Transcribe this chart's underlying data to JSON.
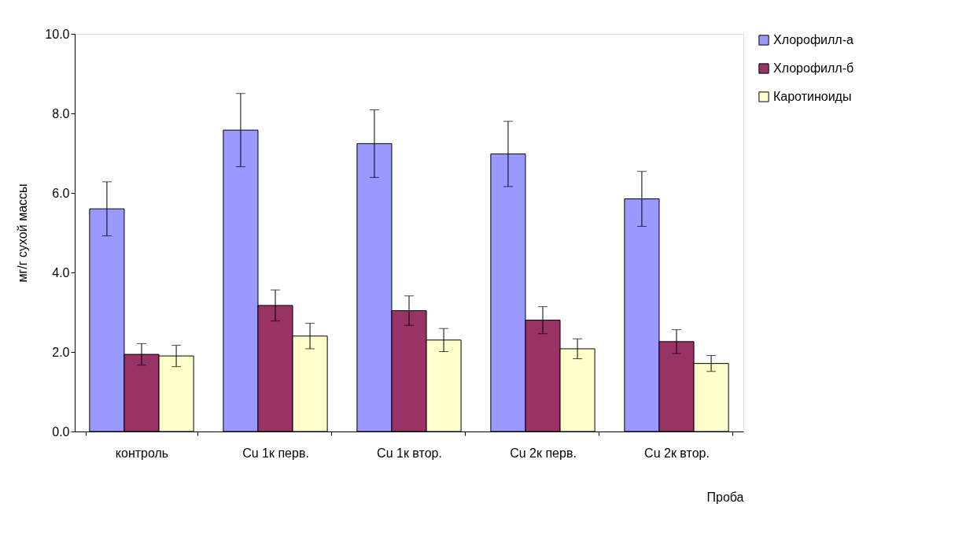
{
  "chart_data": {
    "type": "bar",
    "xlabel": "Проба",
    "ylabel": "мг/г сухой массы",
    "categories": [
      "контроль",
      "Cu 1к перв.",
      "Cu 1к втор.",
      "Cu 2к перв.",
      "Cu 2к втор."
    ],
    "series": [
      {
        "name": "Хлорофилл-а",
        "color": "#9999ff",
        "values": [
          5.6,
          7.58,
          7.24,
          6.98,
          5.85
        ],
        "errors": [
          0.68,
          0.92,
          0.85,
          0.82,
          0.69
        ]
      },
      {
        "name": "Хлорофилл-б",
        "color": "#993366",
        "values": [
          1.94,
          3.17,
          3.04,
          2.8,
          2.26
        ],
        "errors": [
          0.27,
          0.39,
          0.37,
          0.34,
          0.3
        ]
      },
      {
        "name": "Каротиноиды",
        "color": "#ffffcc",
        "values": [
          1.9,
          2.4,
          2.3,
          2.08,
          1.71
        ],
        "errors": [
          0.27,
          0.32,
          0.29,
          0.25,
          0.2
        ]
      }
    ],
    "ylim": [
      0,
      10
    ],
    "yticks": [
      {
        "value": 0,
        "label": "0.0"
      },
      {
        "value": 2,
        "label": "2.0"
      },
      {
        "value": 4,
        "label": "4.0"
      },
      {
        "value": 6,
        "label": "6.0"
      },
      {
        "value": 8,
        "label": "8.0"
      },
      {
        "value": 10,
        "label": "10.0"
      }
    ],
    "grid": false,
    "legend": "top right"
  }
}
